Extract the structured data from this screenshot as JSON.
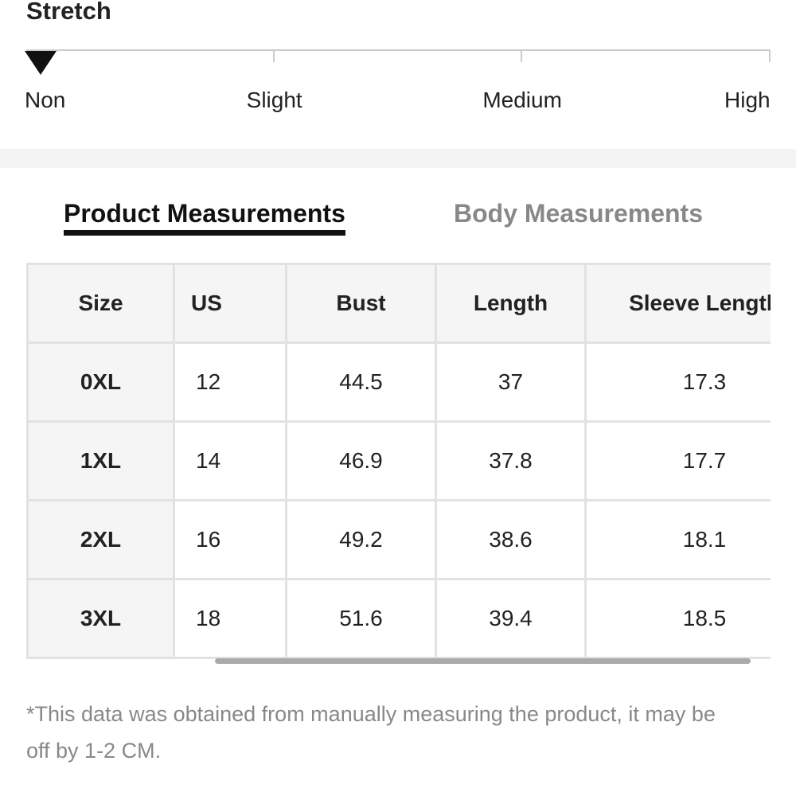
{
  "stretch": {
    "title": "Stretch",
    "levels": [
      "Non",
      "Slight",
      "Medium",
      "High"
    ],
    "selected": 0
  },
  "tabs": {
    "items": [
      "Product Measurements",
      "Body Measurements"
    ],
    "active": 0
  },
  "table": {
    "header": [
      "Size",
      "US",
      "Bust",
      "Length",
      "Sleeve Length"
    ],
    "rows": [
      [
        "0XL",
        "12",
        "44.5",
        "37",
        "17.3"
      ],
      [
        "1XL",
        "14",
        "46.9",
        "37.8",
        "17.7"
      ],
      [
        "2XL",
        "16",
        "49.2",
        "38.6",
        "18.1"
      ],
      [
        "3XL",
        "18",
        "51.6",
        "39.4",
        "18.5"
      ]
    ]
  },
  "note": "*This data was obtained from manually measuring the product, it may be off by 1-2 CM."
}
